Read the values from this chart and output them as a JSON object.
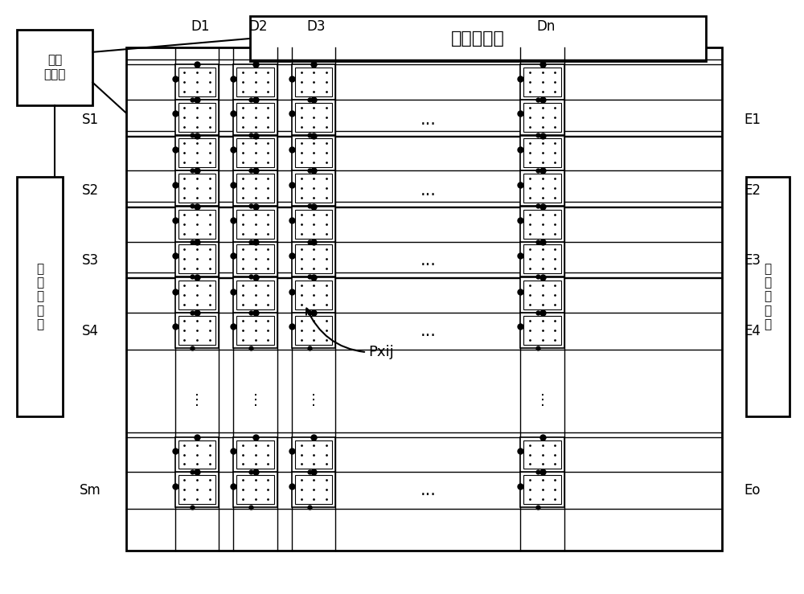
{
  "fig_width": 10.0,
  "fig_height": 7.39,
  "bg_color": "#ffffff",
  "font": "DejaVu Sans",
  "title_text": "数据驱动器",
  "timing_text": "时序\n控制器",
  "scan_text": "扫\n描\n驱\n动\n器",
  "emit_text": "发\n光\n驱\n动\n器",
  "col_labels": [
    "D1",
    "D2",
    "D3",
    "Dn"
  ],
  "row_labels": [
    "S1",
    "S2",
    "S3",
    "S4",
    "Sm"
  ],
  "emit_labels": [
    "E1",
    "E2",
    "E3",
    "E4",
    "Eo"
  ],
  "dots_h": "...",
  "dots_v": "⋮"
}
